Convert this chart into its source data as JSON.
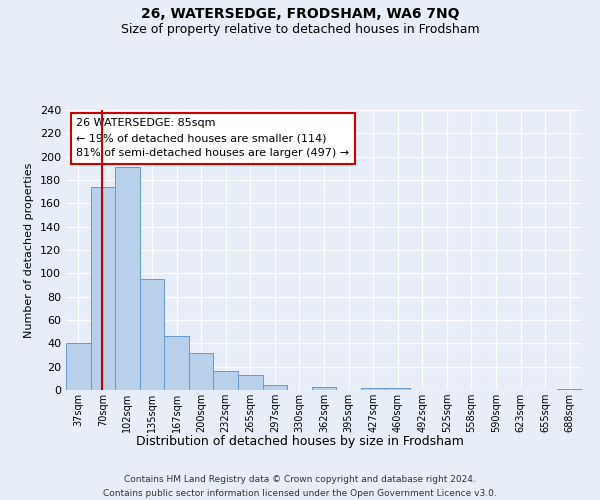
{
  "title": "26, WATERSEDGE, FRODSHAM, WA6 7NQ",
  "subtitle": "Size of property relative to detached houses in Frodsham",
  "xlabel": "Distribution of detached houses by size in Frodsham",
  "ylabel": "Number of detached properties",
  "bar_labels": [
    "37sqm",
    "70sqm",
    "102sqm",
    "135sqm",
    "167sqm",
    "200sqm",
    "232sqm",
    "265sqm",
    "297sqm",
    "330sqm",
    "362sqm",
    "395sqm",
    "427sqm",
    "460sqm",
    "492sqm",
    "525sqm",
    "558sqm",
    "590sqm",
    "623sqm",
    "655sqm",
    "688sqm"
  ],
  "bar_values": [
    40,
    174,
    191,
    95,
    46,
    32,
    16,
    13,
    4,
    0,
    3,
    0,
    2,
    2,
    0,
    0,
    0,
    0,
    0,
    0,
    1
  ],
  "bar_color": "#b8d0ea",
  "bar_edge_color": "#6699cc",
  "red_line_color": "#cc0000",
  "property_line_label": "26 WATERSEDGE: 85sqm",
  "annotation_line1": "← 19% of detached houses are smaller (114)",
  "annotation_line2": "81% of semi-detached houses are larger (497) →",
  "annotation_box_edge": "#cc0000",
  "ylim": [
    0,
    240
  ],
  "yticks": [
    0,
    20,
    40,
    60,
    80,
    100,
    120,
    140,
    160,
    180,
    200,
    220,
    240
  ],
  "footer1": "Contains HM Land Registry data © Crown copyright and database right 2024.",
  "footer2": "Contains public sector information licensed under the Open Government Licence v3.0.",
  "bg_color": "#e8eef8",
  "plot_bg_color": "#e8eef8",
  "grid_color": "#ffffff",
  "title_fontsize": 10,
  "subtitle_fontsize": 9
}
